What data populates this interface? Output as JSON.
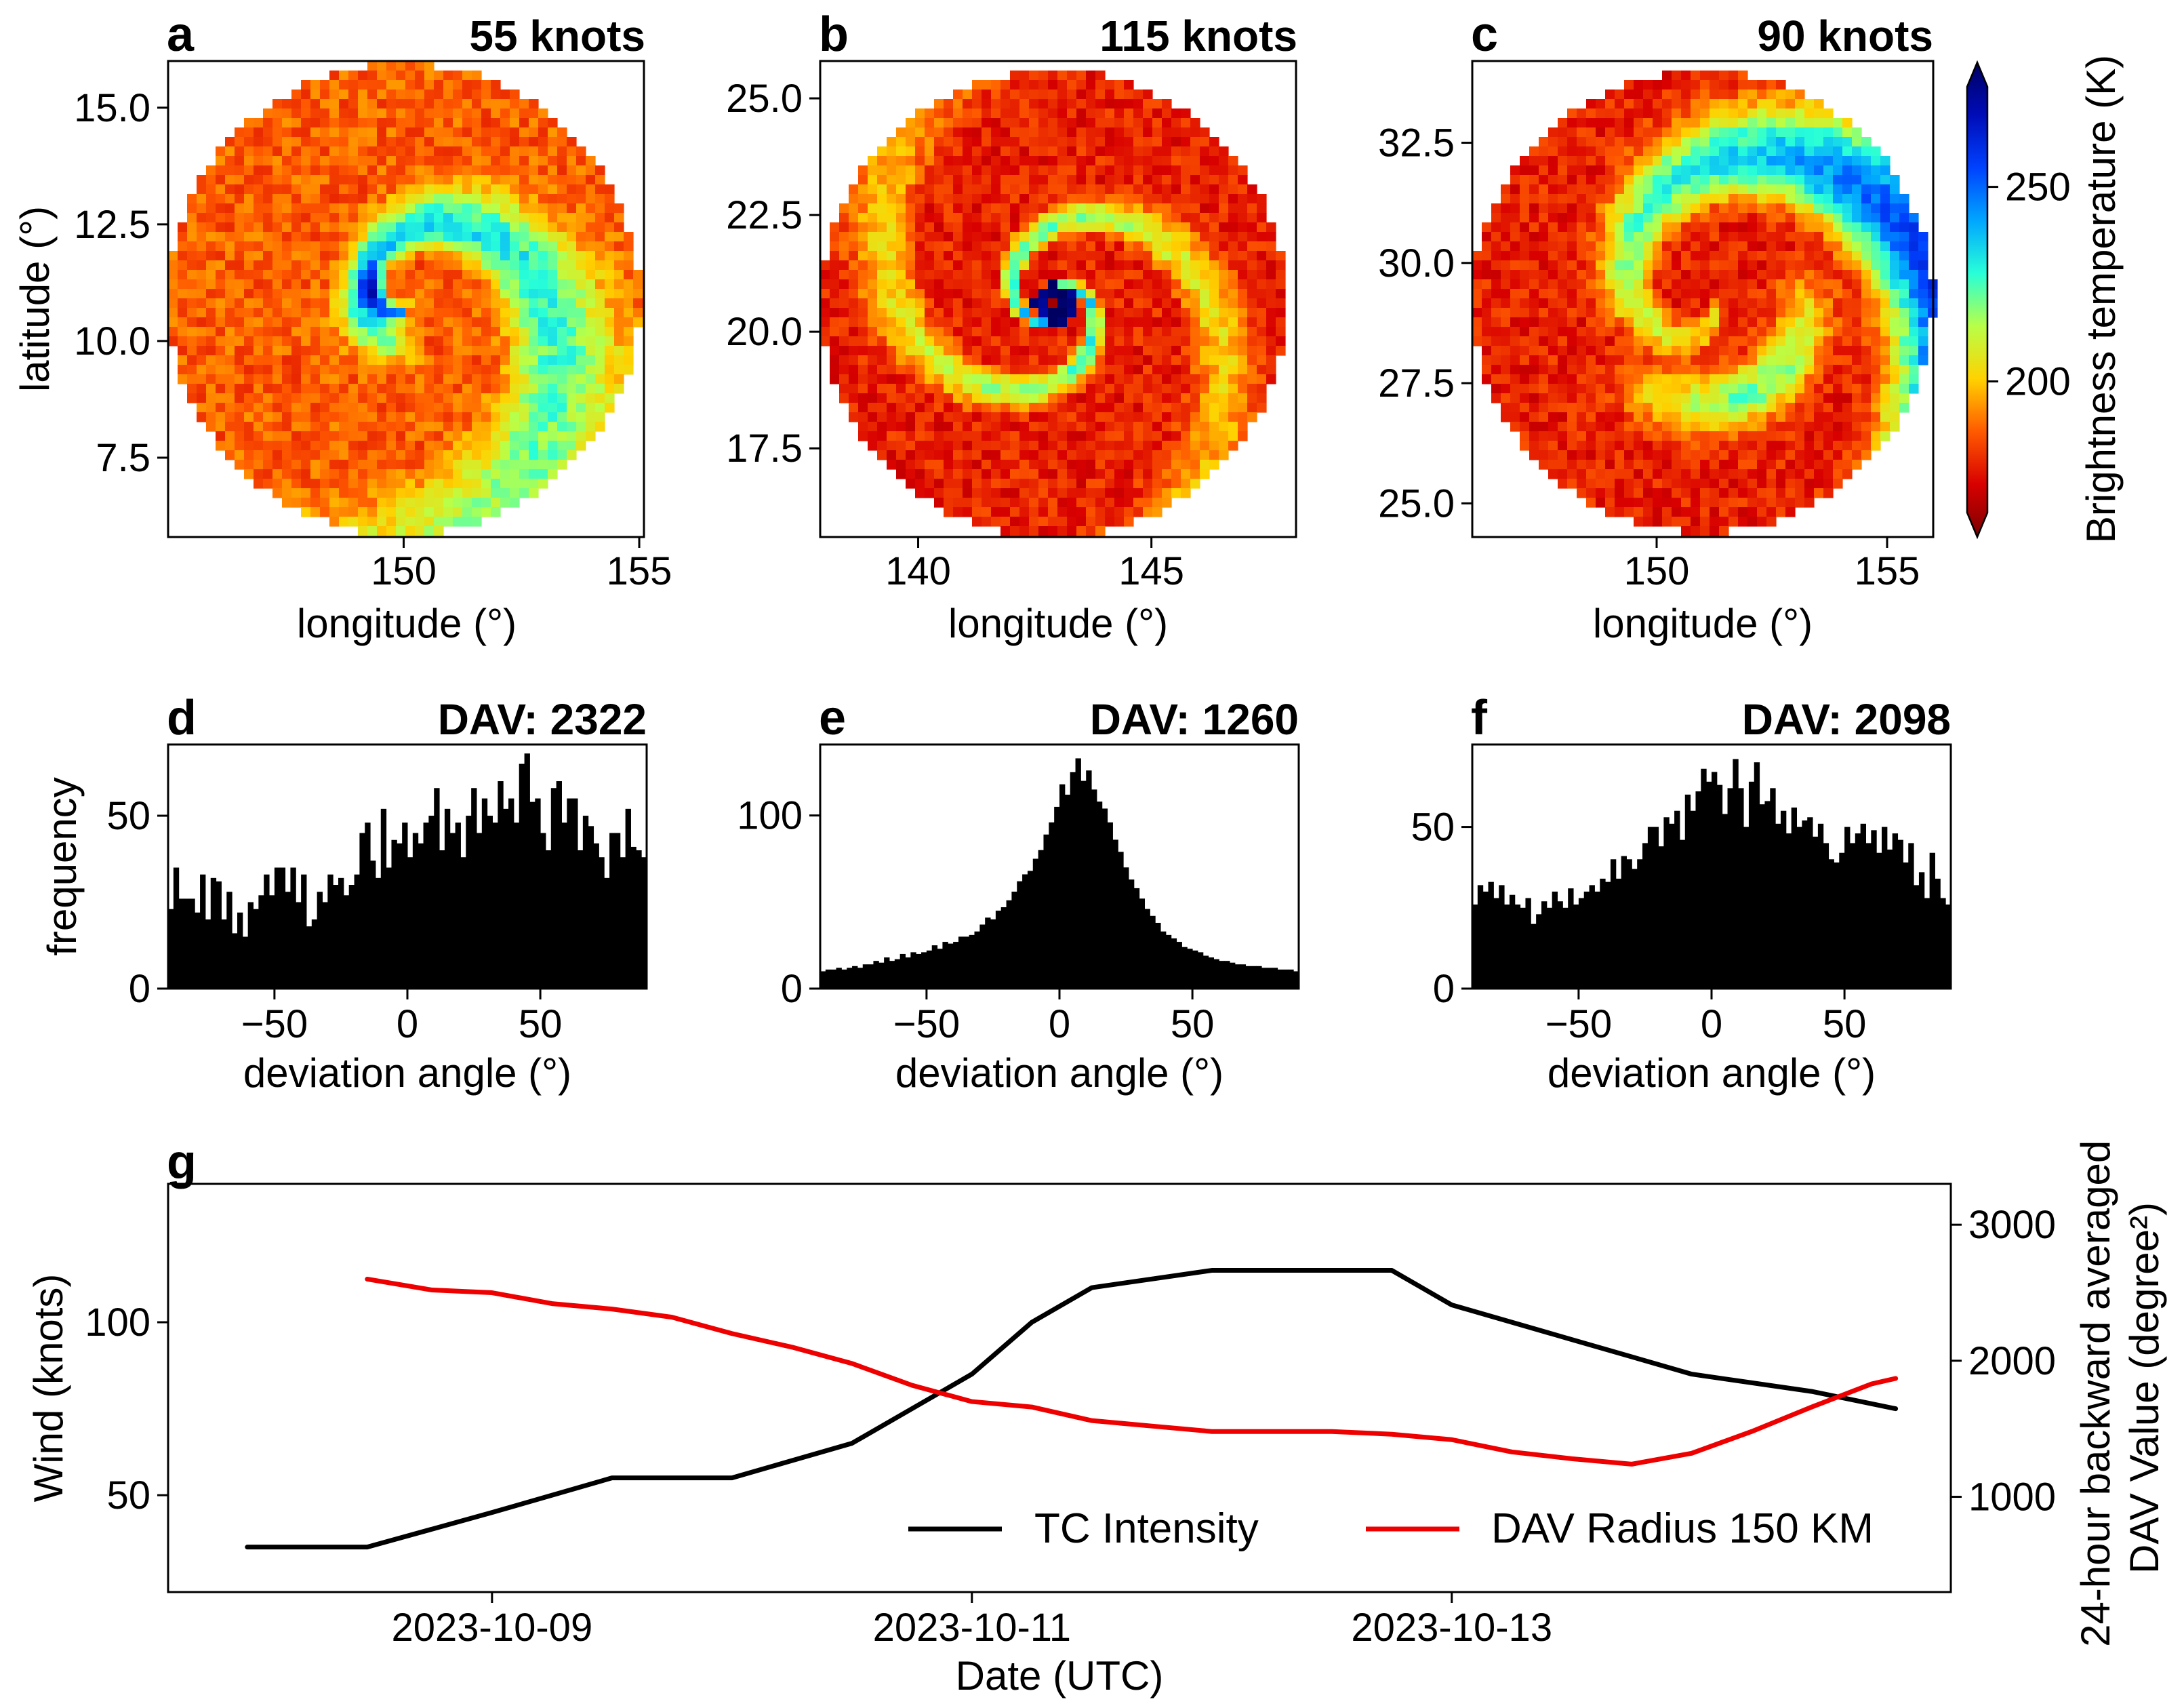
{
  "colors": {
    "intensity": "#000000",
    "dav": "#ee0000",
    "histogram": "#000000",
    "colormap_stops": [
      "#7a0000",
      "#d80000",
      "#ff5a00",
      "#ffd200",
      "#b8ff48",
      "#28ffd8",
      "#00a6ff",
      "#0042ff",
      "#000cb8",
      "#000060"
    ]
  },
  "chart_data": [
    {
      "panel": "a",
      "type": "heatmap",
      "title": "55 knots",
      "xlabel": "longitude (°)",
      "ylabel": "latitude (°)",
      "xlim": [
        145.0,
        155.1
      ],
      "ylim": [
        5.8,
        16.0
      ],
      "xticks": [
        150,
        155
      ],
      "yticks": [
        7.5,
        10.0,
        12.5,
        15.0
      ],
      "xtick_labels": [
        "150",
        "155"
      ],
      "ytick_labels": [
        "7.5",
        "10.0",
        "12.5",
        "15.0"
      ],
      "center": [
        150.0,
        10.9
      ],
      "radius_deg": 5.0
    },
    {
      "panel": "b",
      "type": "heatmap",
      "title": "115 knots",
      "xlabel": "longitude (°)",
      "ylabel": "",
      "xlim": [
        137.9,
        148.1
      ],
      "ylim": [
        15.6,
        25.8
      ],
      "xticks": [
        140,
        145
      ],
      "yticks": [
        17.5,
        20.0,
        22.5,
        25.0
      ],
      "xtick_labels": [
        "140",
        "145"
      ],
      "ytick_labels": [
        "17.5",
        "20.0",
        "22.5",
        "25.0"
      ],
      "center": [
        142.9,
        20.6
      ],
      "radius_deg": 5.0
    },
    {
      "panel": "c",
      "type": "heatmap",
      "title": "90 knots",
      "xlabel": "longitude (°)",
      "ylabel": "",
      "xlim": [
        146.0,
        156.0
      ],
      "ylim": [
        24.3,
        34.2
      ],
      "xticks": [
        150,
        155
      ],
      "yticks": [
        25.0,
        27.5,
        30.0,
        32.5
      ],
      "xtick_labels": [
        "150",
        "155"
      ],
      "ytick_labels": [
        "25.0",
        "27.5",
        "30.0",
        "32.5"
      ],
      "center": [
        151.0,
        29.2
      ],
      "radius_deg": 5.0,
      "colorbar": {
        "label": "Brightness temperature (K)",
        "range": [
          160,
          282
        ],
        "ticks": [
          200,
          250
        ],
        "tick_labels": [
          "200",
          "250"
        ],
        "extend": "both"
      }
    },
    {
      "panel": "d",
      "type": "bar",
      "title": "DAV: 2322",
      "xlabel": "deviation angle (°)",
      "ylabel": "frequency",
      "xlim": [
        -90,
        90
      ],
      "ylim": [
        0,
        70.6
      ],
      "xticks": [
        -50,
        0,
        50
      ],
      "yticks": [
        0,
        50
      ],
      "xtick_labels": [
        "−50",
        "0",
        "50"
      ],
      "ytick_labels": [
        "0",
        "50"
      ],
      "bin_width": 2,
      "values": [
        23,
        35,
        26,
        26,
        26,
        22,
        33,
        20,
        32,
        31,
        20,
        28,
        16,
        22,
        15,
        25,
        23,
        27,
        33,
        27,
        35,
        35,
        28,
        35,
        25,
        33,
        18,
        20,
        28,
        25,
        33,
        30,
        32,
        27,
        30,
        33,
        45,
        48,
        37,
        32,
        52,
        35,
        43,
        42,
        48,
        38,
        45,
        42,
        48,
        50,
        58,
        40,
        52,
        45,
        48,
        38,
        50,
        58,
        45,
        55,
        50,
        48,
        60,
        52,
        55,
        48,
        65,
        68,
        54,
        55,
        45,
        40,
        58,
        60,
        48,
        55,
        55,
        40,
        50,
        47,
        42,
        38,
        32,
        45,
        45,
        38,
        52,
        41,
        40,
        38
      ]
    },
    {
      "panel": "e",
      "type": "bar",
      "title": "DAV: 1260",
      "xlabel": "deviation angle (°)",
      "ylabel": "",
      "xlim": [
        -90,
        90
      ],
      "ylim": [
        0,
        141
      ],
      "xticks": [
        -50,
        0,
        50
      ],
      "yticks": [
        0,
        100
      ],
      "xtick_labels": [
        "−50",
        "0",
        "50"
      ],
      "ytick_labels": [
        "0",
        "100"
      ],
      "bin_width": 2,
      "values": [
        10,
        11,
        11,
        12,
        11,
        12,
        13,
        12,
        14,
        14,
        16,
        15,
        18,
        16,
        17,
        20,
        18,
        21,
        20,
        21,
        22,
        25,
        23,
        27,
        26,
        27,
        30,
        30,
        31,
        33,
        37,
        41,
        40,
        45,
        47,
        51,
        56,
        62,
        66,
        68,
        75,
        80,
        89,
        96,
        105,
        118,
        112,
        125,
        133,
        120,
        126,
        115,
        108,
        104,
        96,
        86,
        79,
        70,
        63,
        58,
        52,
        46,
        42,
        38,
        33,
        31,
        29,
        27,
        24,
        23,
        22,
        21,
        19,
        18,
        17,
        16,
        16,
        15,
        14,
        14,
        13,
        13,
        13,
        12,
        12,
        12,
        11,
        11,
        11,
        10
      ]
    },
    {
      "panel": "f",
      "type": "bar",
      "title": "DAV: 2098",
      "xlabel": "deviation angle (°)",
      "ylabel": "",
      "xlim": [
        -90,
        90
      ],
      "ylim": [
        0,
        75.5
      ],
      "xticks": [
        -50,
        0,
        50
      ],
      "yticks": [
        0,
        50
      ],
      "xtick_labels": [
        "−50",
        "0",
        "50"
      ],
      "ytick_labels": [
        "0",
        "50"
      ],
      "bin_width": 2,
      "values": [
        26,
        32,
        30,
        33,
        28,
        32,
        26,
        29,
        26,
        25,
        28,
        20,
        23,
        27,
        25,
        30,
        27,
        25,
        31,
        26,
        28,
        30,
        32,
        30,
        34,
        33,
        40,
        34,
        41,
        40,
        37,
        40,
        45,
        50,
        50,
        44,
        53,
        51,
        55,
        46,
        60,
        55,
        61,
        68,
        64,
        67,
        63,
        54,
        62,
        71,
        62,
        50,
        64,
        70,
        57,
        58,
        62,
        51,
        55,
        48,
        56,
        50,
        52,
        53,
        47,
        51,
        45,
        40,
        39,
        42,
        50,
        45,
        48,
        51,
        45,
        49,
        42,
        50,
        43,
        48,
        46,
        39,
        45,
        32,
        36,
        28,
        42,
        34,
        28,
        26
      ]
    },
    {
      "panel": "g",
      "type": "line",
      "title": "",
      "xlabel": "Date (UTC)",
      "ylabel": "Wind (knots)",
      "y2label_lines": [
        "24-hour backward averaged",
        "DAV Value (degree²)"
      ],
      "xlim": [
        7.65,
        15.08
      ],
      "ylim": [
        22,
        140
      ],
      "y2lim": [
        300,
        3300
      ],
      "xticks": [
        9,
        11,
        13
      ],
      "xtick_labels": [
        "2023-10-09",
        "2023-10-11",
        "2023-10-13"
      ],
      "yticks": [
        50,
        100
      ],
      "ytick_labels": [
        "50",
        "100"
      ],
      "y2ticks": [
        1000,
        2000,
        3000
      ],
      "y2tick_labels": [
        "1000",
        "2000",
        "3000"
      ],
      "legend_position": "lower-right",
      "series": [
        {
          "name": "TC Intensity",
          "axis": "left",
          "x": [
            7.98,
            8.48,
            9.0,
            9.5,
            10.0,
            10.5,
            10.75,
            11.0,
            11.25,
            11.5,
            12.0,
            12.5,
            12.75,
            13.0,
            13.5,
            14.0,
            14.5,
            14.85
          ],
          "values": [
            35,
            35,
            45,
            55,
            55,
            65,
            75,
            85,
            100,
            110,
            115,
            115,
            115,
            105,
            95,
            85,
            80,
            75
          ]
        },
        {
          "name": "DAV Radius 150 KM",
          "axis": "right",
          "x": [
            8.48,
            8.75,
            9.0,
            9.25,
            9.5,
            9.75,
            10.0,
            10.25,
            10.5,
            10.75,
            11.0,
            11.25,
            11.5,
            11.75,
            12.0,
            12.25,
            12.5,
            12.75,
            13.0,
            13.25,
            13.5,
            13.75,
            14.0,
            14.25,
            14.5,
            14.75,
            14.85
          ],
          "values": [
            2600,
            2520,
            2500,
            2420,
            2380,
            2320,
            2200,
            2100,
            1980,
            1820,
            1700,
            1660,
            1560,
            1520,
            1480,
            1480,
            1480,
            1460,
            1420,
            1330,
            1280,
            1240,
            1320,
            1480,
            1660,
            1830,
            1870
          ]
        }
      ]
    }
  ]
}
